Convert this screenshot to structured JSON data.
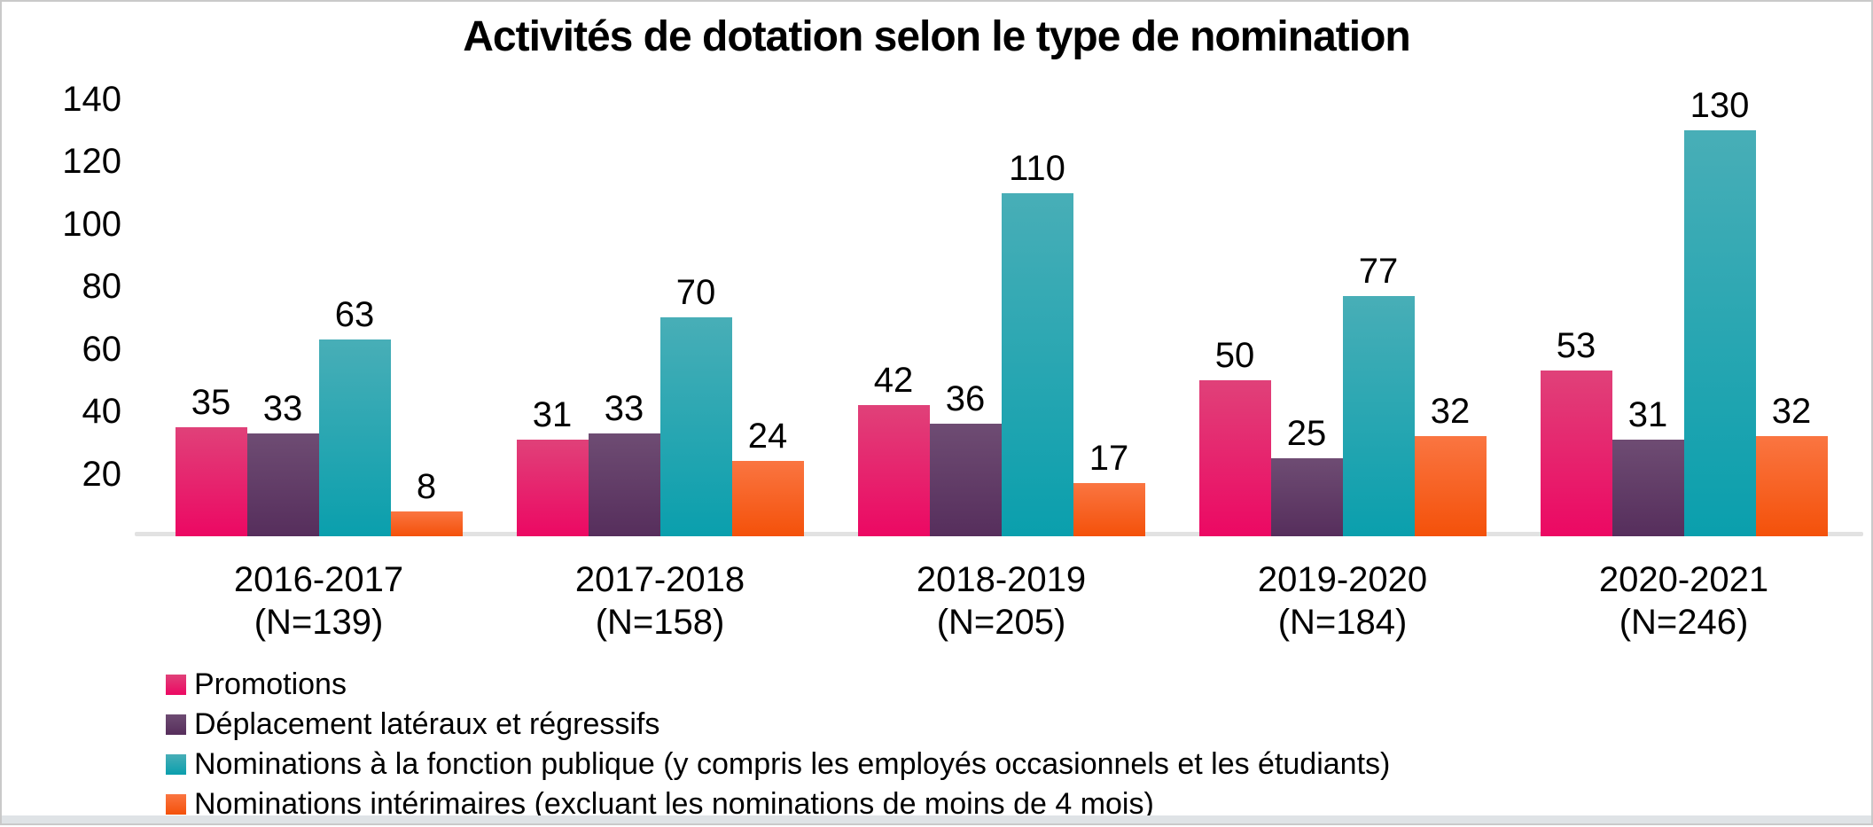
{
  "chart_data": {
    "type": "bar",
    "title": "Activités de dotation selon le type de nomination",
    "categories": [
      "2016-2017",
      "2017-2018",
      "2018-2019",
      "2019-2020",
      "2020-2021"
    ],
    "category_sublabels": [
      "(N=139)",
      "(N=158)",
      "(N=205)",
      "(N=184)",
      "(N=246)"
    ],
    "series": [
      {
        "name": "Promotions",
        "values": [
          35,
          31,
          42,
          50,
          53
        ],
        "color_top": "#e04179",
        "color_bottom": "#ec0863"
      },
      {
        "name": "Déplacement latéraux et régressifs",
        "values": [
          33,
          33,
          36,
          25,
          31
        ],
        "color_top": "#6e4c73",
        "color_bottom": "#562e5c"
      },
      {
        "name": "Nominations à la fonction publique (y compris les employés occasionnels et les étudiants)",
        "values": [
          63,
          70,
          110,
          77,
          130
        ],
        "color_top": "#48aeb7",
        "color_bottom": "#0a9fad"
      },
      {
        "name": "Nominations intérimaires (excluant les nominations de moins de 4 mois)",
        "values": [
          8,
          24,
          17,
          32,
          32
        ],
        "color_top": "#fa7541",
        "color_bottom": "#f4510a"
      }
    ],
    "yticks": [
      20,
      40,
      60,
      80,
      100,
      120,
      140
    ],
    "ylim": [
      0,
      140
    ],
    "grid": false,
    "legend_position": "bottom-left",
    "axis_line_color": "#e2e2e2",
    "data_labels": true
  }
}
